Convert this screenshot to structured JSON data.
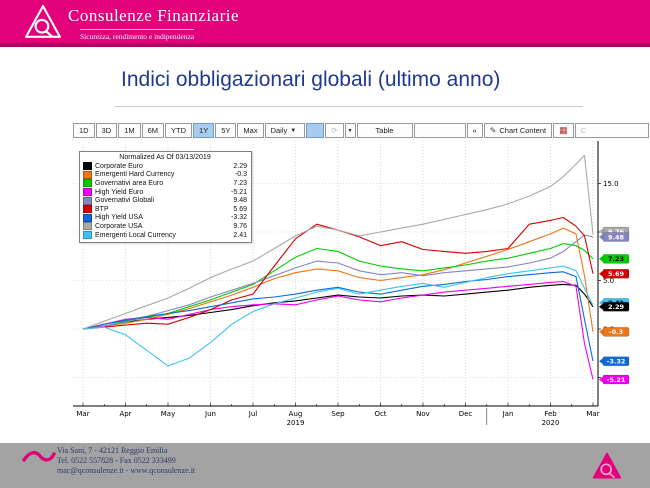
{
  "colors": {
    "brand_magenta": "#E2017B",
    "brand_dark": "#B70063",
    "title_blue": "#1F3A8F",
    "footer_bg": "#A3A3A3",
    "footer_text": "#2B3A6B",
    "toolbar_active_blue": "#A9CCEE"
  },
  "header": {
    "brand": "Consulenze Finanziarie",
    "tagline": "Sicurezza, rendimento e indipendenza"
  },
  "slide": {
    "title": "Indici obbligazionari globali (ultimo anno)"
  },
  "toolbar": {
    "range_buttons": [
      "1D",
      "3D",
      "1M",
      "6M",
      "YTD",
      "1Y",
      "5Y",
      "Max"
    ],
    "active_range": "1Y",
    "period_label": "Daily",
    "table_label": "Table",
    "collapse_label": "«",
    "chart_content_label": "Chart Content"
  },
  "chart_data": {
    "type": "line",
    "title": "",
    "normalized_note": "Normalized As Of 03/13/2019",
    "x_months": [
      "Mar",
      "Apr",
      "May",
      "Jun",
      "Jul",
      "Aug",
      "Sep",
      "Oct",
      "Nov",
      "Dec",
      "Jan",
      "Feb",
      "Mar"
    ],
    "year_labels": [
      {
        "text": "2019",
        "month_index": 5
      },
      {
        "text": "2020",
        "month_index": 11
      }
    ],
    "ylim": [
      -8,
      19
    ],
    "y_gridlines": [
      -5,
      0,
      5,
      10,
      15
    ],
    "y_tick_labels": [
      {
        "value": 15,
        "text": "15.0"
      },
      {
        "value": 10,
        "text": "10.0"
      },
      {
        "value": 5,
        "text": "5.0"
      },
      {
        "value": 0,
        "text": "0.0"
      },
      {
        "value": -5,
        "text": "-5.0"
      }
    ],
    "x": [
      0,
      0.5,
      1,
      1.5,
      2,
      2.5,
      3,
      3.5,
      4,
      4.5,
      5,
      5.5,
      6,
      6.5,
      7,
      7.5,
      8,
      8.5,
      9,
      9.5,
      10,
      10.5,
      11,
      11.3,
      11.6,
      11.8,
      12
    ],
    "series": [
      {
        "name": "Corporate Euro",
        "color": "#000000",
        "last_value": "2.29",
        "badge_text": "#ffffff",
        "badge_hidden": false,
        "values": [
          0,
          0.3,
          0.7,
          1.0,
          1.2,
          1.4,
          1.7,
          2.0,
          2.4,
          2.7,
          2.9,
          3.2,
          3.5,
          3.3,
          3.2,
          3.4,
          3.5,
          3.4,
          3.6,
          3.8,
          4.0,
          4.3,
          4.5,
          4.6,
          4.5,
          3.6,
          2.29
        ]
      },
      {
        "name": "Emergenti Hard Currency",
        "color": "#EE7519",
        "last_value": "-0.3",
        "badge_text": "#ffffff",
        "badge_hidden": false,
        "values": [
          0,
          0.3,
          0.6,
          1.0,
          1.5,
          2.1,
          2.8,
          3.5,
          4.3,
          5.2,
          5.8,
          6.2,
          6.0,
          5.3,
          5.0,
          5.3,
          5.6,
          6.1,
          6.8,
          7.5,
          8.2,
          9.0,
          9.8,
          10.4,
          9.8,
          5.5,
          -0.3
        ]
      },
      {
        "name": "Governativi area Euro",
        "color": "#00CC00",
        "last_value": "7.23",
        "badge_text": "#000000",
        "badge_hidden": false,
        "values": [
          0,
          0.3,
          0.8,
          1.2,
          1.6,
          2.3,
          3.0,
          3.8,
          4.6,
          6.0,
          7.4,
          8.3,
          8.0,
          7.0,
          6.5,
          6.2,
          6.0,
          6.3,
          6.6,
          7.0,
          7.3,
          7.8,
          8.3,
          8.8,
          8.6,
          8.1,
          7.23
        ]
      },
      {
        "name": "High Yield Euro",
        "color": "#F000F0",
        "last_value": "-5.21",
        "badge_text": "#ffffff",
        "badge_hidden": false,
        "values": [
          0,
          0.5,
          1.0,
          1.2,
          1.0,
          1.5,
          2.0,
          2.3,
          2.5,
          2.6,
          2.5,
          3.0,
          3.4,
          3.0,
          2.8,
          3.2,
          3.5,
          3.8,
          4.0,
          4.2,
          4.4,
          4.6,
          4.8,
          4.9,
          4.4,
          -1.5,
          -5.21
        ]
      },
      {
        "name": "Governativi Globali",
        "color": "#8486BE",
        "last_value": "9.48",
        "badge_text": "#ffffff",
        "badge_hidden": false,
        "values": [
          0,
          0.3,
          0.7,
          1.3,
          1.9,
          2.5,
          3.3,
          4.0,
          4.7,
          5.5,
          6.3,
          7.0,
          6.8,
          6.0,
          5.6,
          5.8,
          5.5,
          5.8,
          6.0,
          6.2,
          6.4,
          6.8,
          7.3,
          8.0,
          9.0,
          9.7,
          9.48
        ]
      },
      {
        "name": "BTP",
        "color": "#D40000",
        "last_value": "5.69",
        "badge_text": "#ffffff",
        "badge_hidden": false,
        "values": [
          0,
          0.2,
          0.4,
          0.6,
          0.5,
          1.2,
          2.0,
          3.0,
          3.6,
          6.5,
          9.3,
          10.8,
          10.2,
          9.5,
          8.6,
          9.0,
          8.2,
          8.0,
          7.8,
          8.0,
          8.3,
          10.8,
          11.2,
          11.5,
          10.6,
          9.6,
          5.69
        ]
      },
      {
        "name": "High Yield USA",
        "color": "#0D6BD8",
        "last_value": "-3.32",
        "badge_text": "#ffffff",
        "badge_hidden": false,
        "values": [
          0,
          0.5,
          0.9,
          1.3,
          1.6,
          1.9,
          2.3,
          2.7,
          3.1,
          3.3,
          3.6,
          4.0,
          4.3,
          3.8,
          3.6,
          4.0,
          4.4,
          4.6,
          4.9,
          5.1,
          5.4,
          5.6,
          5.8,
          5.9,
          5.4,
          1.0,
          -3.32
        ]
      },
      {
        "name": "Corporate USA",
        "color": "#A9A9A9",
        "last_value": "9.76",
        "badge_text": "#ffffff",
        "badge_hidden": true,
        "values": [
          0,
          0.8,
          1.6,
          2.4,
          3.2,
          4.2,
          5.3,
          6.2,
          7.0,
          8.3,
          9.6,
          10.6,
          10.2,
          9.6,
          10.0,
          10.4,
          10.8,
          11.3,
          11.8,
          12.3,
          12.9,
          13.7,
          14.7,
          15.7,
          17.0,
          17.9,
          9.76
        ]
      },
      {
        "name": "Emergenti Local Currency",
        "color": "#3FC1EF",
        "last_value": "2.41",
        "badge_text": "#000000",
        "badge_hidden": true,
        "values": [
          0,
          0.2,
          -0.6,
          -2.2,
          -3.8,
          -3.0,
          -1.4,
          0.5,
          1.8,
          2.6,
          3.2,
          3.8,
          4.2,
          3.6,
          4.0,
          4.4,
          4.7,
          4.3,
          4.8,
          5.3,
          5.7,
          6.0,
          6.3,
          6.5,
          6.0,
          4.2,
          2.41
        ]
      }
    ],
    "legend_position": "top-left",
    "grid": "dotted"
  },
  "footer": {
    "address": "Via Sani, 7 - 42121 Reggio Emilia",
    "phone": "Tel. 0522 557828 - Fax 0522 333499",
    "web": "mac@qconsulenze.it - www.qconsulenze.it"
  }
}
